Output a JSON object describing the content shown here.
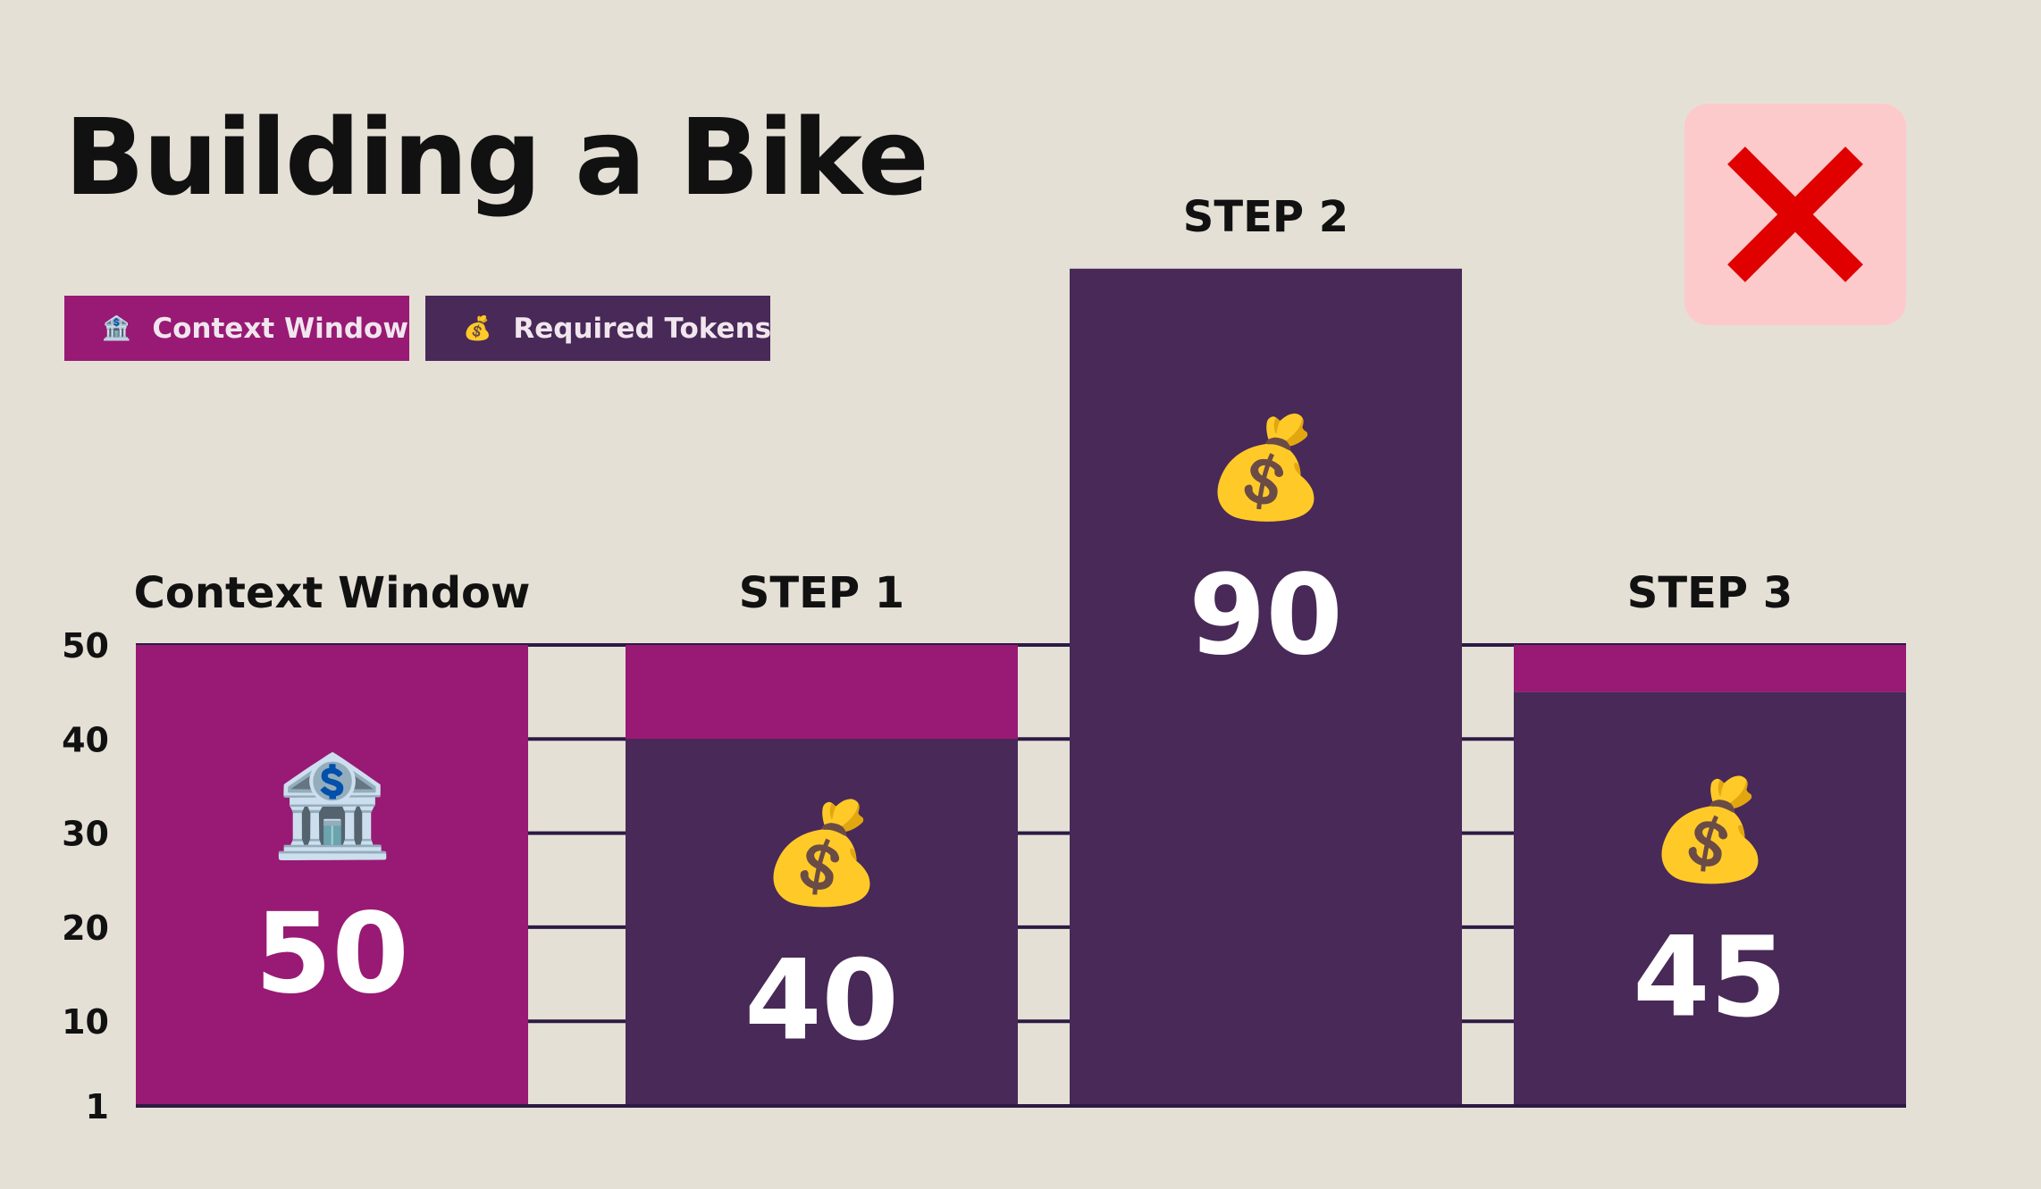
{
  "header": {
    "title": "Building a Bike"
  },
  "legend": [
    {
      "icon": "🏦",
      "icon_name": "bank-icon",
      "label": "Context Window",
      "color": "#981a74"
    },
    {
      "icon": "💰",
      "icon_name": "money-bag-icon",
      "label": "Required Tokens",
      "color": "#482958"
    }
  ],
  "status": {
    "icon_name": "cross-mark-icon",
    "color": "#e00000",
    "background": "#fdcacb"
  },
  "colors": {
    "background": "#e5e0d6",
    "context_window": "#981a74",
    "required_tokens": "#482958",
    "gridline": "#2d1a44"
  },
  "chart_data": {
    "type": "bar",
    "title": "Building a Bike",
    "categories": [
      "Context Window",
      "STEP 1",
      "STEP 2",
      "STEP 3"
    ],
    "context_window": 50,
    "values": [
      50,
      40,
      90,
      45
    ],
    "value_labels": [
      "50",
      "40",
      "90",
      "45"
    ],
    "bar_icons": [
      "🏦",
      "💰",
      "💰",
      "💰"
    ],
    "y_ticks": [
      "1",
      "10",
      "20",
      "30",
      "40",
      "50"
    ],
    "y_tick_values": [
      1,
      10,
      20,
      30,
      40,
      50
    ],
    "ylim": [
      1,
      50
    ],
    "grid": true,
    "legend_position": "top-left"
  }
}
